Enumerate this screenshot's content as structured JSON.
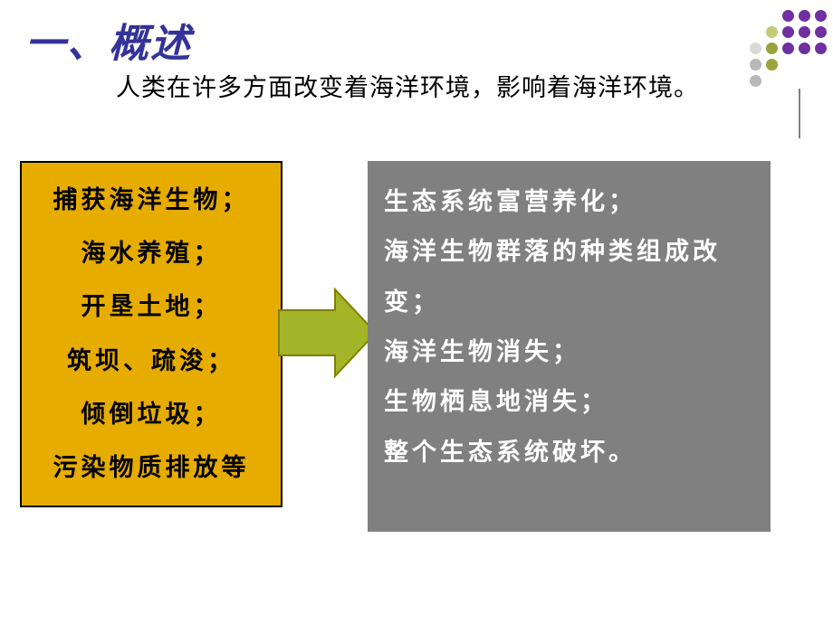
{
  "title": "一、概述",
  "subtitle": "人类在许多方面改变着海洋环境，影响着海洋环境。",
  "leftBox": {
    "bg": "#e6ac00",
    "border": "#000000",
    "items": [
      "捕获海洋生物；",
      "海水养殖；",
      "开垦土地；",
      "筑坝、疏浚；",
      "倾倒垃圾；",
      "污染物质排放等"
    ]
  },
  "rightBox": {
    "bg": "#808080",
    "textColor": "#ffffff",
    "text": "生态系统富营养化；\n海洋生物群落的种类组成改变；\n海洋生物消失；\n生物栖息地消失；\n整个生态系统破坏。"
  },
  "arrow": {
    "fill": "#a2b427",
    "stroke": "#808000"
  },
  "dotGrid": {
    "colors": {
      "purple": "#7030a0",
      "olive": "#9aa23e",
      "oliveLight": "#c4cc7a",
      "gray": "#b8b8b8",
      "grayLight": "#d9d9d9"
    },
    "pattern": [
      [
        "",
        "",
        "purple",
        "purple",
        "purple"
      ],
      [
        "",
        "olive",
        "purple",
        "purple",
        "purple"
      ],
      [
        "gray",
        "olive",
        "purple",
        "purple",
        "purple"
      ],
      [
        "gray",
        "olive",
        "",
        "",
        ""
      ],
      [
        "gray",
        "",
        "",
        "",
        ""
      ]
    ],
    "tints": [
      [
        "",
        "",
        "purple",
        "purple",
        "purple"
      ],
      [
        "",
        "oliveLight",
        "purple",
        "purple",
        "purple"
      ],
      [
        "grayLight",
        "olive",
        "purple",
        "purple",
        "purple"
      ],
      [
        "gray",
        "olive",
        "",
        "",
        ""
      ],
      [
        "gray",
        "",
        "",
        "",
        ""
      ]
    ]
  },
  "colors": {
    "titleColor": "#333399",
    "background": "#ffffff"
  }
}
